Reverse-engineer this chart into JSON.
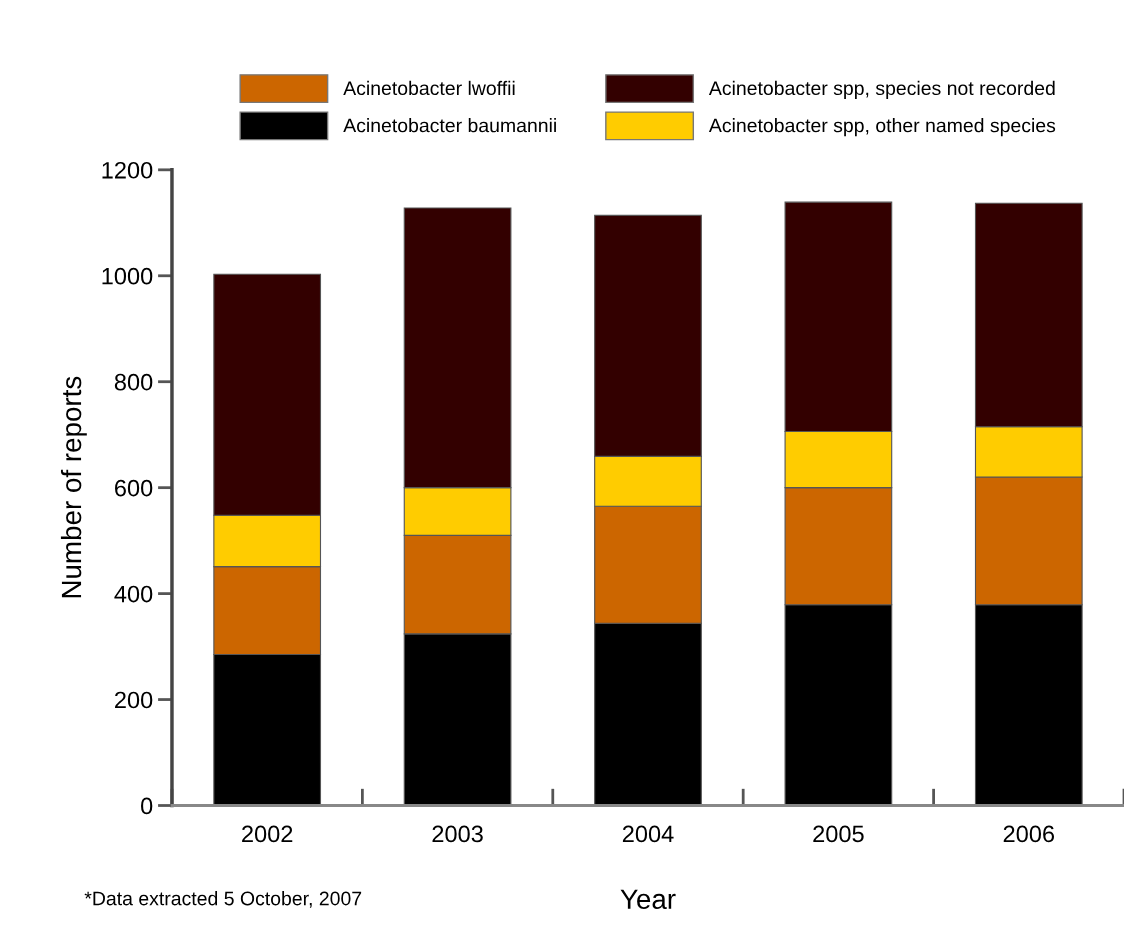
{
  "chart_data": {
    "type": "bar",
    "stacked": true,
    "xlabel": "Year",
    "ylabel": "Number of reports",
    "categories": [
      "2002",
      "2003",
      "2004",
      "2005",
      "2006"
    ],
    "series": [
      {
        "name": "Acinetobacter baumannii",
        "color": "#000000",
        "values": [
          285,
          324,
          344,
          379,
          379
        ]
      },
      {
        "name": "Acinetobacter lwoffii",
        "color": "#cc6600",
        "values": [
          166,
          186,
          221,
          221,
          241
        ]
      },
      {
        "name": "Acinetobacter spp, other named species",
        "color": "#ffcc00",
        "values": [
          97,
          90,
          94,
          106,
          95
        ]
      },
      {
        "name": "Acinetobacter spp, species not recorded",
        "color": "#330000",
        "values": [
          455,
          528,
          455,
          433,
          422
        ]
      }
    ],
    "ylim": [
      0,
      1200
    ],
    "yticks": [
      0,
      200,
      400,
      600,
      800,
      1000,
      1200
    ],
    "grid": false,
    "legend": "top",
    "annotations": [
      "*Data extracted 5 October, 2007"
    ]
  }
}
